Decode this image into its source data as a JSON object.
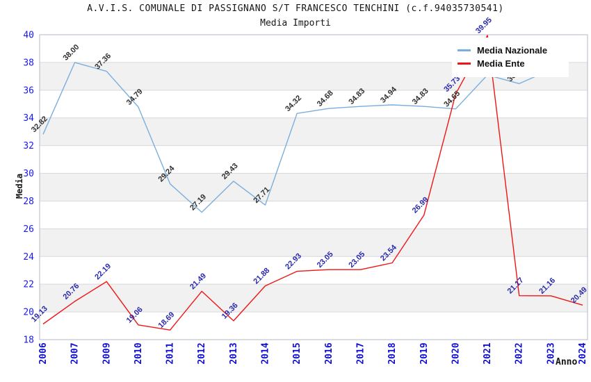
{
  "header": {
    "title": "A.V.I.S. COMUNALE DI PASSIGNANO S/T FRANCESCO TENCHINI (c.f.94035730541)",
    "subtitle": "Media Importi"
  },
  "legend": {
    "items": [
      {
        "label": "Media Nazionale",
        "color": "#7aaede"
      },
      {
        "label": "Media Ente",
        "color": "#ef1515"
      }
    ]
  },
  "colors": {
    "nazionale_line": "#7aaede",
    "ente_line": "#ef1515",
    "nazionale_label_text": "#303030",
    "ente_label_text": "#2929ad",
    "y_tick_text": "#1919e6",
    "x_tick_text": "#0f0fd2",
    "gridline": "#d9d9d9",
    "band_fill": "#f1f1f1",
    "plot_border": "#b3bac4"
  },
  "chart_data": {
    "type": "line",
    "title": "A.V.I.S. COMUNALE DI PASSIGNANO S/T FRANCESCO TENCHINI (c.f.94035730541)",
    "subtitle": "Media Importi",
    "xlabel": "Anno",
    "ylabel": "Media",
    "ylim": [
      18,
      40
    ],
    "y_ticks": [
      18,
      20,
      22,
      24,
      26,
      28,
      30,
      32,
      34,
      36,
      38,
      40
    ],
    "grid": true,
    "legend_position": "top-right-inside",
    "categories": [
      "2006",
      "2007",
      "2009",
      "2010",
      "2011",
      "2012",
      "2013",
      "2014",
      "2015",
      "2016",
      "2017",
      "2018",
      "2019",
      "2020",
      "2021",
      "2022",
      "2023",
      "2024"
    ],
    "series": [
      {
        "name": "Media Nazionale",
        "color": "#7aaede",
        "label_color": "#303030",
        "values": [
          32.82,
          38.0,
          37.36,
          34.79,
          29.24,
          27.19,
          29.43,
          27.71,
          34.32,
          34.68,
          34.83,
          34.94,
          34.83,
          34.65,
          37.1,
          36.47,
          37.48,
          null
        ],
        "labels": [
          "32.82",
          "38.00",
          "37.36",
          "34.79",
          "29.24",
          "27.19",
          "29.43",
          "27.71",
          "34.32",
          "34.68",
          "34.83",
          "34.94",
          "34.83",
          "34.65",
          null,
          "36.47",
          null,
          null
        ]
      },
      {
        "name": "Media Ente",
        "color": "#ef1515",
        "label_color": "#2929ad",
        "values": [
          19.13,
          20.76,
          22.19,
          19.06,
          18.69,
          21.49,
          19.36,
          21.88,
          22.93,
          23.05,
          23.05,
          23.54,
          26.99,
          35.73,
          39.95,
          21.17,
          21.16,
          20.49
        ],
        "labels": [
          "19.13",
          "20.76",
          "22.19",
          "19.06",
          "18.69",
          "21.49",
          "19.36",
          "21.88",
          "22.93",
          "23.05",
          "23.05",
          "23.54",
          "26.99",
          "35.73",
          "39.95",
          "21.17",
          "21.16",
          "20.49"
        ]
      }
    ]
  }
}
